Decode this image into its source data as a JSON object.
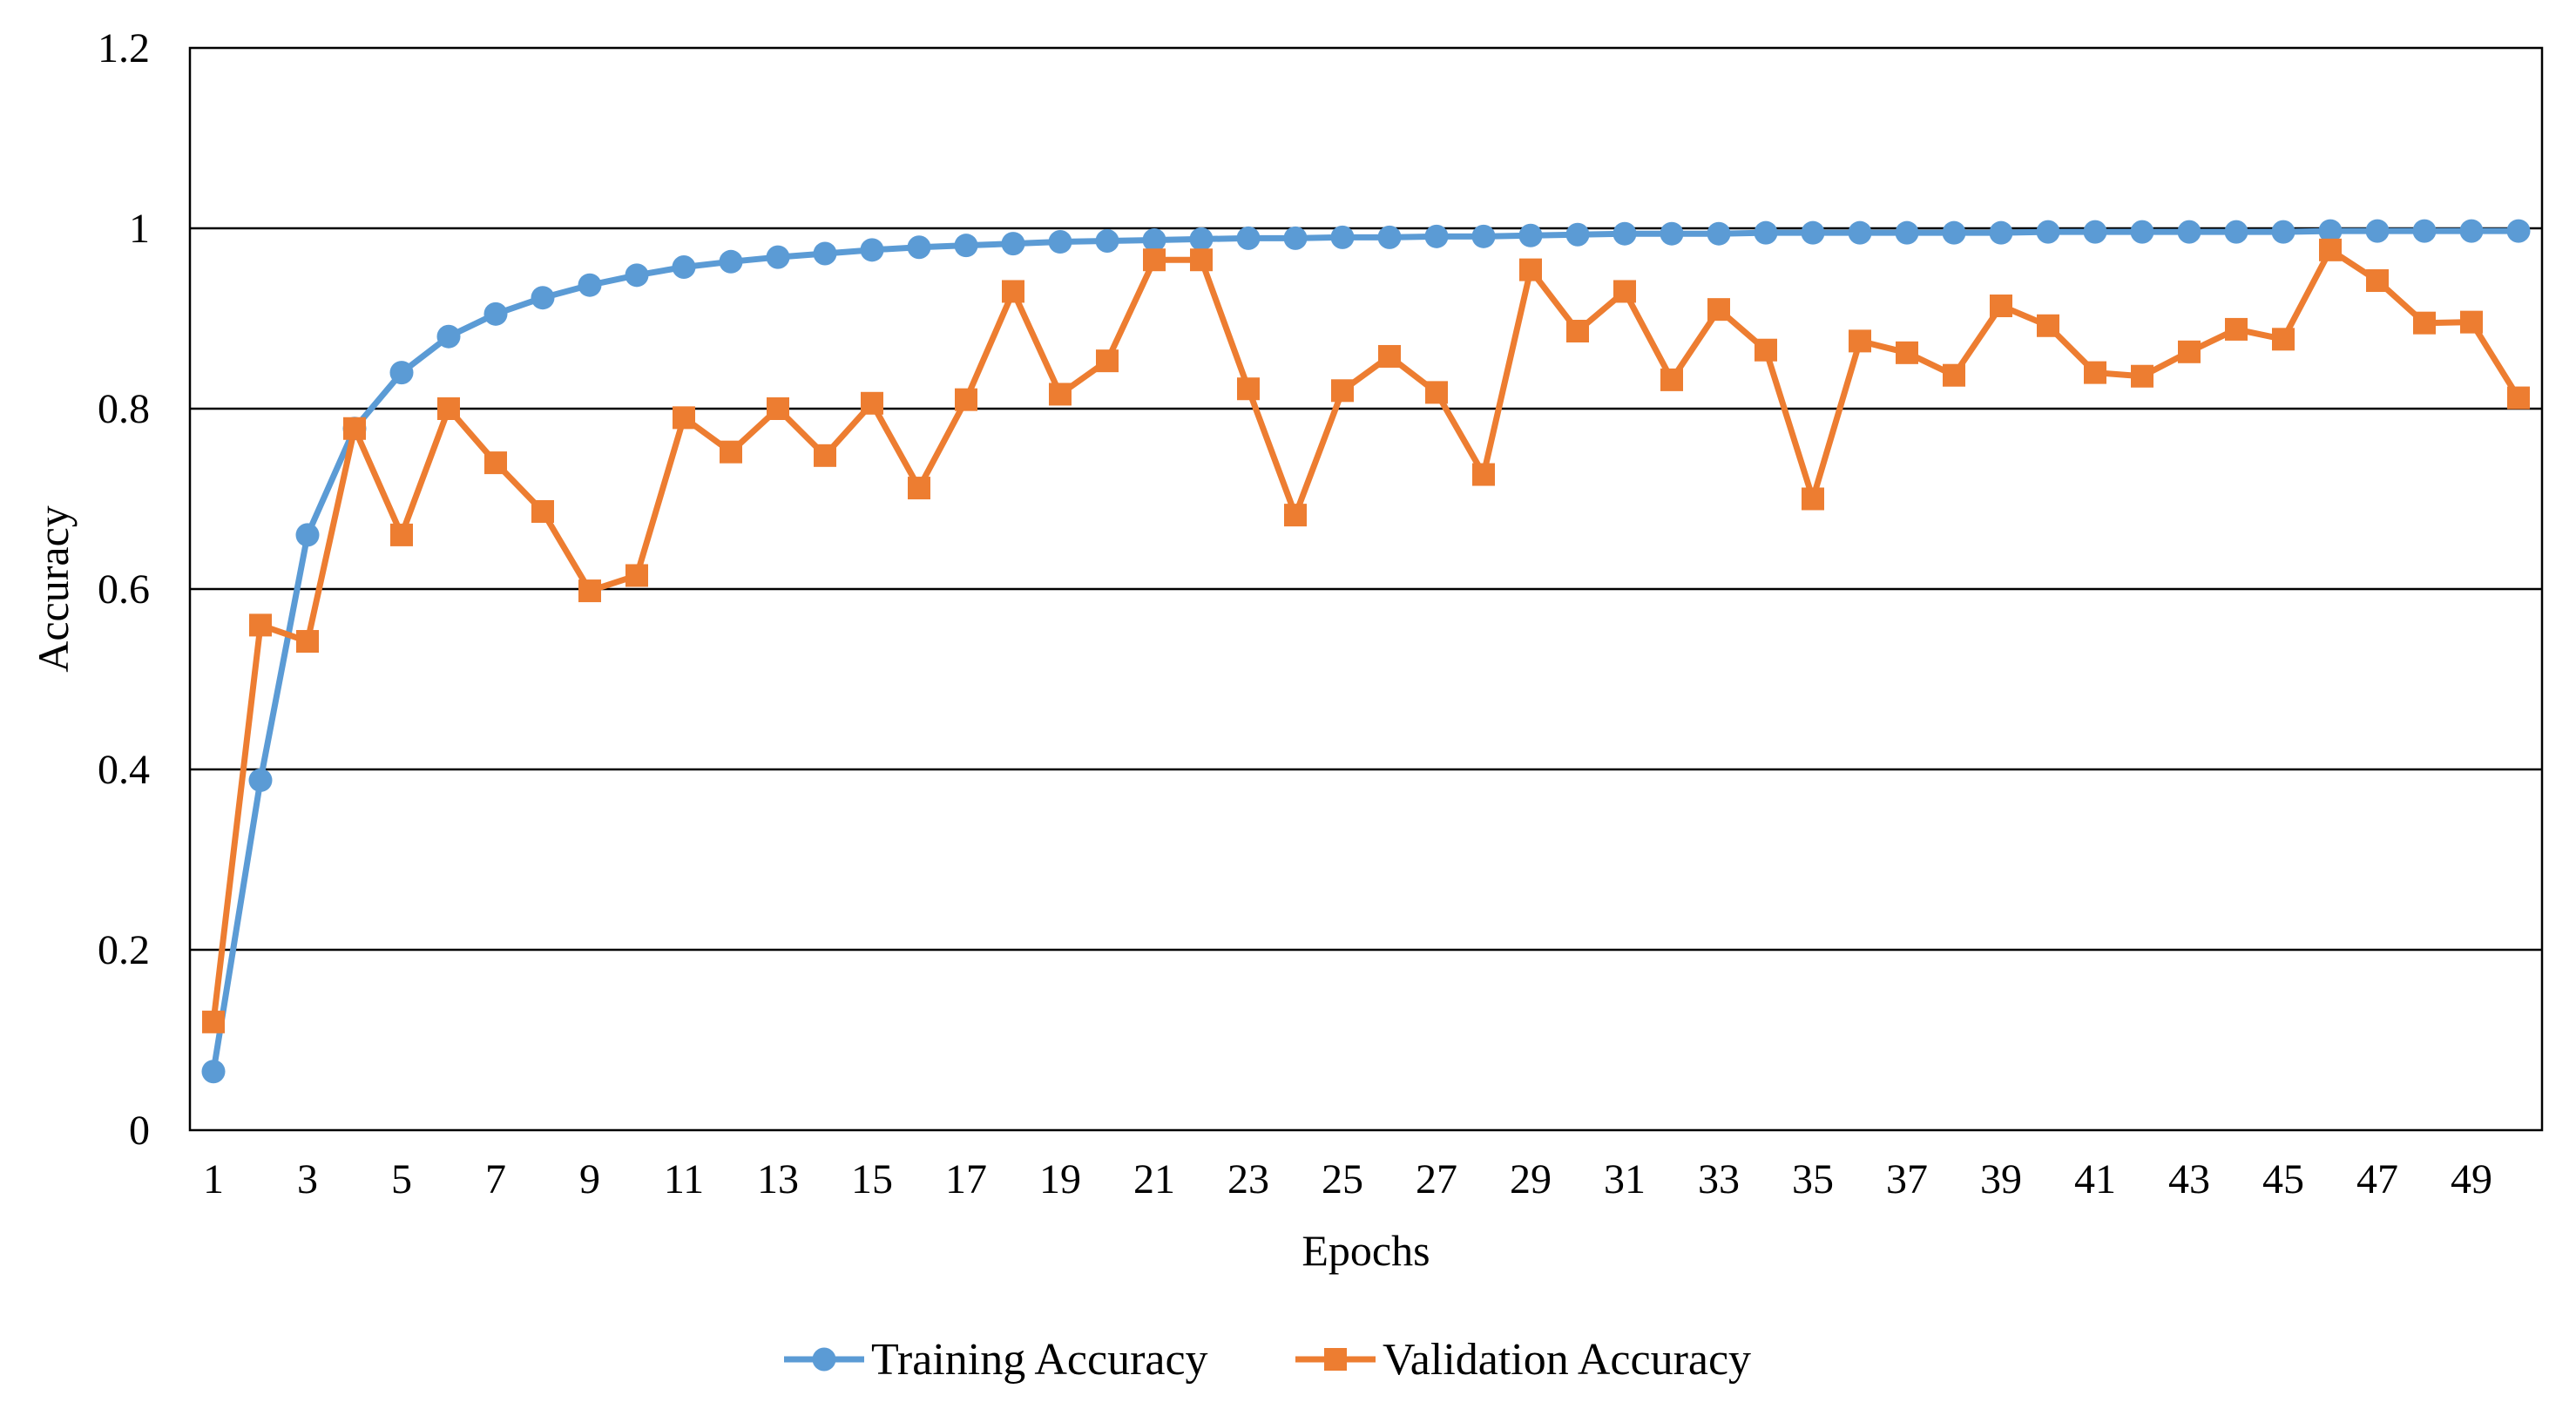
{
  "chart_data": {
    "type": "line",
    "title": "",
    "xlabel": "Epochs",
    "ylabel": "Accuracy",
    "x": [
      1,
      2,
      3,
      4,
      5,
      6,
      7,
      8,
      9,
      10,
      11,
      12,
      13,
      14,
      15,
      16,
      17,
      18,
      19,
      20,
      21,
      22,
      23,
      24,
      25,
      26,
      27,
      28,
      29,
      30,
      31,
      32,
      33,
      34,
      35,
      36,
      37,
      38,
      39,
      40,
      41,
      42,
      43,
      44,
      45,
      46,
      47,
      48,
      49,
      50
    ],
    "x_tick_labels": [
      "1",
      "3",
      "5",
      "7",
      "9",
      "11",
      "13",
      "15",
      "17",
      "19",
      "21",
      "23",
      "25",
      "27",
      "29",
      "31",
      "33",
      "35",
      "37",
      "39",
      "41",
      "43",
      "45",
      "47",
      "49"
    ],
    "ylim": [
      0,
      1.2
    ],
    "y_ticks": [
      0,
      0.2,
      0.4,
      0.6,
      0.8,
      1,
      1.2
    ],
    "y_tick_labels": [
      "0",
      "0.2",
      "0.4",
      "0.6",
      "0.8",
      "1",
      "1.2"
    ],
    "grid": true,
    "legend_position": "bottom-center",
    "series": [
      {
        "name": "Training Accuracy",
        "color": "#5B9BD5",
        "marker": "circle",
        "values": [
          0.065,
          0.388,
          0.66,
          0.778,
          0.84,
          0.88,
          0.905,
          0.923,
          0.937,
          0.948,
          0.957,
          0.963,
          0.968,
          0.972,
          0.976,
          0.979,
          0.981,
          0.983,
          0.985,
          0.986,
          0.987,
          0.988,
          0.989,
          0.989,
          0.99,
          0.99,
          0.991,
          0.991,
          0.992,
          0.993,
          0.994,
          0.994,
          0.994,
          0.995,
          0.995,
          0.995,
          0.995,
          0.995,
          0.995,
          0.996,
          0.996,
          0.996,
          0.996,
          0.996,
          0.996,
          0.997,
          0.997,
          0.997,
          0.997,
          0.997
        ]
      },
      {
        "name": "Validation Accuracy",
        "color": "#ED7D31",
        "marker": "square",
        "values": [
          0.12,
          0.56,
          0.542,
          0.778,
          0.66,
          0.8,
          0.74,
          0.686,
          0.598,
          0.615,
          0.79,
          0.752,
          0.8,
          0.748,
          0.806,
          0.712,
          0.81,
          0.93,
          0.816,
          0.853,
          0.965,
          0.965,
          0.822,
          0.682,
          0.82,
          0.858,
          0.818,
          0.727,
          0.954,
          0.886,
          0.93,
          0.832,
          0.91,
          0.865,
          0.7,
          0.875,
          0.862,
          0.837,
          0.914,
          0.892,
          0.84,
          0.836,
          0.863,
          0.888,
          0.877,
          0.976,
          0.942,
          0.895,
          0.896,
          0.812
        ]
      }
    ]
  }
}
